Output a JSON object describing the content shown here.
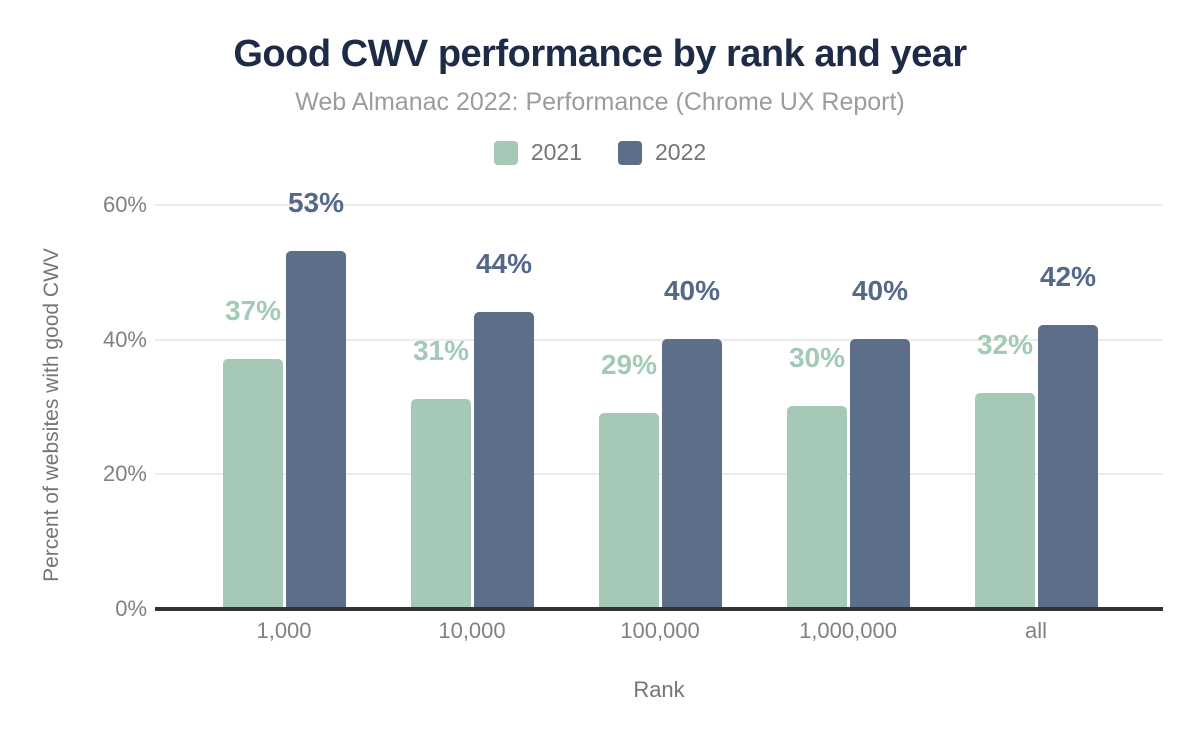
{
  "colors": {
    "background": "#ffffff",
    "title_text": "#1d2b47",
    "subtitle_text": "#9c9c9c",
    "axis_text": "#818181",
    "axis_title_text": "#757575",
    "gridline": "#ececec",
    "axis_line": "#333333",
    "series_2021": "#a5c8b7",
    "series_2022": "#5d6f88"
  },
  "chart_data": {
    "type": "bar",
    "title": "Good CWV performance by rank and year",
    "subtitle": "Web Almanac 2022: Performance (Chrome UX Report)",
    "xlabel": "Rank",
    "ylabel": "Percent of websites with good CWV",
    "categories": [
      "1,000",
      "10,000",
      "100,000",
      "1,000,000",
      "all"
    ],
    "series": [
      {
        "name": "2021",
        "color": "#a5c8b7",
        "label_color": "#a3cab6",
        "values": [
          37,
          31,
          29,
          30,
          32
        ]
      },
      {
        "name": "2022",
        "color": "#5d6f88",
        "label_color": "#54688c",
        "values": [
          53,
          44,
          40,
          40,
          42
        ]
      }
    ],
    "value_suffix": "%",
    "y_axis": {
      "min": 0,
      "max": 60,
      "ticks": [
        {
          "value": 0,
          "label": "0%"
        },
        {
          "value": 20,
          "label": "20%"
        },
        {
          "value": 40,
          "label": "40%"
        },
        {
          "value": 60,
          "label": "60%"
        }
      ]
    },
    "legend_position": "top",
    "grid": "horizontal"
  }
}
